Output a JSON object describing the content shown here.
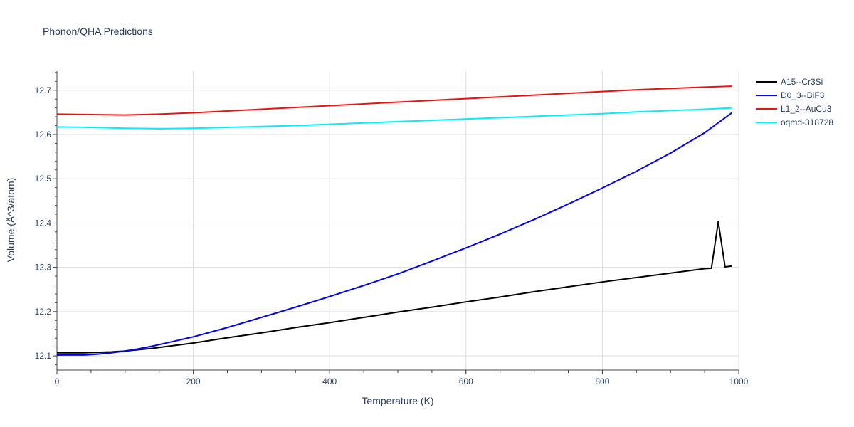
{
  "chart_data": {
    "type": "line",
    "title": "Phonon/QHA Predictions",
    "xlabel": "Temperature (K)",
    "ylabel": "Volume (Å^3/atom)",
    "xlim": [
      0,
      1000
    ],
    "ylim": [
      12.068,
      12.743
    ],
    "xticks": [
      0,
      200,
      400,
      600,
      800,
      1000
    ],
    "yticks": [
      12.1,
      12.2,
      12.3,
      12.4,
      12.5,
      12.6,
      12.7
    ],
    "grid": true,
    "legend_position": "top-right",
    "series": [
      {
        "name": "A15--Cr3Si",
        "color": "#000000",
        "x": [
          0,
          20,
          40,
          60,
          80,
          100,
          120,
          140,
          160,
          180,
          200,
          250,
          300,
          350,
          400,
          450,
          500,
          550,
          600,
          650,
          700,
          750,
          800,
          850,
          900,
          950,
          960,
          970,
          980,
          990
        ],
        "y": [
          12.107,
          12.107,
          12.107,
          12.108,
          12.109,
          12.111,
          12.114,
          12.117,
          12.121,
          12.125,
          12.129,
          12.141,
          12.152,
          12.164,
          12.175,
          12.187,
          12.199,
          12.21,
          12.222,
          12.233,
          12.245,
          12.256,
          12.267,
          12.277,
          12.287,
          12.297,
          12.298,
          12.403,
          12.301,
          12.303
        ]
      },
      {
        "name": "D0_3--BiF3",
        "color": "#0000ee",
        "x": [
          0,
          20,
          40,
          60,
          80,
          100,
          120,
          140,
          160,
          180,
          200,
          250,
          300,
          350,
          400,
          450,
          500,
          550,
          600,
          650,
          700,
          750,
          800,
          850,
          900,
          950,
          990
        ],
        "y": [
          12.102,
          12.102,
          12.102,
          12.104,
          12.107,
          12.111,
          12.116,
          12.122,
          12.129,
          12.136,
          12.143,
          12.164,
          12.187,
          12.21,
          12.234,
          12.259,
          12.285,
          12.314,
          12.344,
          12.375,
          12.408,
          12.443,
          12.479,
          12.517,
          12.558,
          12.604,
          12.649
        ]
      },
      {
        "name": "L1_2--AuCu3",
        "color": "#ee1111",
        "x": [
          0,
          50,
          100,
          150,
          200,
          250,
          300,
          350,
          400,
          450,
          500,
          550,
          600,
          650,
          700,
          750,
          800,
          850,
          900,
          950,
          990
        ],
        "y": [
          12.646,
          12.645,
          12.644,
          12.646,
          12.649,
          12.653,
          12.657,
          12.661,
          12.665,
          12.669,
          12.673,
          12.677,
          12.681,
          12.685,
          12.689,
          12.693,
          12.697,
          12.701,
          12.704,
          12.707,
          12.709
        ]
      },
      {
        "name": "oqmd-318728",
        "color": "#00eeff",
        "x": [
          0,
          50,
          100,
          150,
          200,
          250,
          300,
          350,
          400,
          450,
          500,
          550,
          600,
          650,
          700,
          750,
          800,
          850,
          900,
          950,
          990
        ],
        "y": [
          12.617,
          12.616,
          12.614,
          12.613,
          12.614,
          12.616,
          12.618,
          12.62,
          12.623,
          12.626,
          12.629,
          12.632,
          12.635,
          12.638,
          12.641,
          12.644,
          12.647,
          12.651,
          12.654,
          12.657,
          12.66
        ]
      }
    ]
  }
}
